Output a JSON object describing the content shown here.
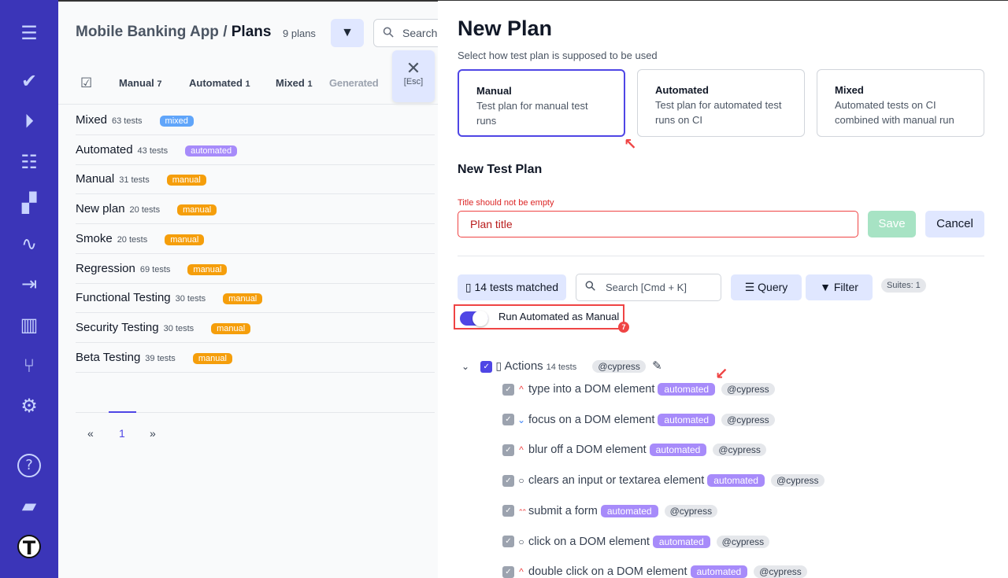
{
  "sidebar": {
    "icons": [
      "menu-icon",
      "check-icon",
      "play-icon",
      "list-check-icon",
      "steps-icon",
      "pulse-icon",
      "import-icon",
      "chart-icon",
      "branch-icon",
      "gear-icon",
      "help-icon",
      "folder-icon",
      "logo-icon"
    ]
  },
  "header": {
    "project": "Mobile Banking App",
    "sep": "/",
    "page": "Plans",
    "count": "9 plans",
    "search_placeholder": "Search",
    "close": "✕",
    "esc": "[Esc]"
  },
  "tabs": [
    {
      "label": "Manual",
      "n": "7"
    },
    {
      "label": "Automated",
      "n": "1"
    },
    {
      "label": "Mixed",
      "n": "1"
    },
    {
      "label": "Generated",
      "n": ""
    }
  ],
  "plans": [
    {
      "name": "Mixed",
      "tests": "63 tests",
      "badge": "mixed",
      "color": "#60a5fa"
    },
    {
      "name": "Automated",
      "tests": "43 tests",
      "badge": "automated",
      "color": "#a78bfa"
    },
    {
      "name": "Manual",
      "tests": "31 tests",
      "badge": "manual",
      "color": "#f59e0b"
    },
    {
      "name": "New plan",
      "tests": "20 tests",
      "badge": "manual",
      "color": "#f59e0b"
    },
    {
      "name": "Smoke",
      "tests": "20 tests",
      "badge": "manual",
      "color": "#f59e0b"
    },
    {
      "name": "Regression",
      "tests": "69 tests",
      "badge": "manual",
      "color": "#f59e0b"
    },
    {
      "name": "Functional Testing",
      "tests": "30 tests",
      "badge": "manual",
      "color": "#f59e0b"
    },
    {
      "name": "Security Testing",
      "tests": "30 tests",
      "badge": "manual",
      "color": "#f59e0b"
    },
    {
      "name": "Beta Testing",
      "tests": "39 tests",
      "badge": "manual",
      "color": "#f59e0b"
    }
  ],
  "pager": {
    "prev": "«",
    "page": "1",
    "next": "»"
  },
  "form": {
    "title": "New Plan",
    "subtitle": "Select how test plan is supposed to be used",
    "types": [
      {
        "name": "Manual",
        "desc": "Test plan for manual test runs",
        "selected": true
      },
      {
        "name": "Automated",
        "desc": "Test plan for automated test runs on CI"
      },
      {
        "name": "Mixed",
        "desc": "Automated tests on CI combined with manual run"
      }
    ],
    "section": "New Test Plan",
    "error": "Title should not be empty",
    "title_placeholder": "Plan title",
    "save": "Save",
    "cancel": "Cancel",
    "matched": "14 tests matched",
    "search_placeholder": "Search [Cmd + K]",
    "query": "Query",
    "filter": "Filter",
    "suites": "Suites: 1",
    "toggle_label": "Run Automated as Manual",
    "toggle_on": true,
    "toggle_badge": "7"
  },
  "suite": {
    "name": "Actions",
    "tests": "14 tests",
    "tag": "@cypress"
  },
  "tests": [
    {
      "title": "type into a DOM element",
      "priority": "high",
      "badge": "automated",
      "tag": "@cypress"
    },
    {
      "title": "focus on a DOM element",
      "priority": "low",
      "badge": "automated",
      "tag": "@cypress"
    },
    {
      "title": "blur off a DOM element",
      "priority": "high",
      "badge": "automated",
      "tag": "@cypress"
    },
    {
      "title": "clears an input or textarea element",
      "priority": "normal",
      "badge": "automated",
      "tag": "@cypress"
    },
    {
      "title": "submit a form",
      "priority": "critical",
      "badge": "automated",
      "tag": "@cypress"
    },
    {
      "title": "click on a DOM element",
      "priority": "normal",
      "badge": "automated",
      "tag": "@cypress"
    },
    {
      "title": "double click on a DOM element",
      "priority": "high",
      "badge": "automated",
      "tag": "@cypress"
    }
  ]
}
